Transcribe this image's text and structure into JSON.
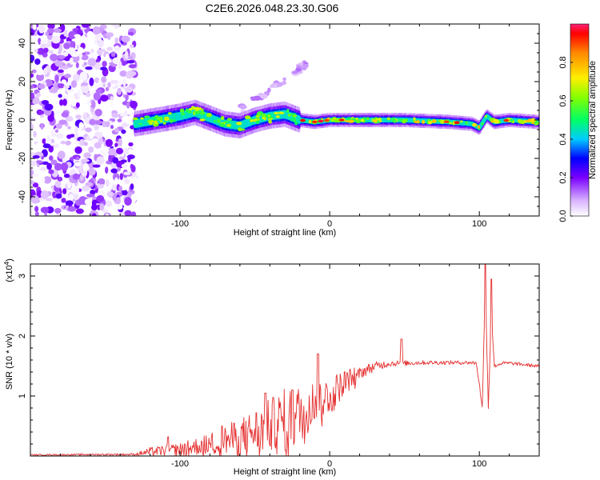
{
  "title": "C2E6.2026.048.23.30.G06",
  "colors": {
    "snr_line": "#e53030",
    "axis": "#000000"
  },
  "chart_data": [
    {
      "type": "heatmap",
      "xlabel": "Height of straight line (km)",
      "ylabel": "Frequency (Hz)",
      "xlim": [
        -200,
        140
      ],
      "ylim": [
        -50,
        50
      ],
      "x_ticks": [
        -100,
        0,
        100
      ],
      "x_tick_labels": [
        "-100",
        "0",
        "100"
      ],
      "y_ticks": [
        -40,
        -20,
        0,
        20,
        40
      ],
      "y_tick_labels": [
        "-40",
        "-20",
        "0",
        "20",
        "40"
      ],
      "colorbar": {
        "label": "Normalized spectral amplitude",
        "range": [
          0,
          1
        ],
        "ticks": [
          0,
          0.2,
          0.4,
          0.6,
          0.8
        ],
        "tick_labels": [
          "0.0",
          "0.2",
          "0.4",
          "0.6",
          "0.8"
        ]
      },
      "ridge": {
        "x": [
          -130,
          -115,
          -100,
          -90,
          -80,
          -70,
          -60,
          -50,
          -40,
          -30,
          -20,
          -10,
          0,
          20,
          50,
          80,
          95,
          100,
          105,
          110,
          120,
          140
        ],
        "freq": [
          -2,
          0,
          2,
          4,
          1,
          -2,
          -3,
          0,
          2,
          3,
          0,
          -1,
          0,
          0,
          0,
          -1,
          -2,
          -4,
          2,
          -1,
          0,
          -1
        ]
      },
      "noise_region": {
        "x_range": [
          -200,
          -130
        ],
        "freq_range": [
          -50,
          50
        ]
      }
    },
    {
      "type": "line",
      "xlabel": "Height of straight line (km)",
      "ylabel": "SNR (10 * v/v)",
      "y_scale_label": "(x10",
      "y_scale_exp": "4",
      "xlim": [
        -200,
        140
      ],
      "ylim": [
        0,
        3.2
      ],
      "x_ticks": [
        -100,
        0,
        100
      ],
      "x_tick_labels": [
        "-100",
        "0",
        "100"
      ],
      "y_ticks": [
        1,
        2,
        3
      ],
      "y_tick_labels": [
        "1",
        "2",
        "3"
      ],
      "series": [
        {
          "name": "SNR",
          "envelope_x": [
            -200,
            -130,
            -120,
            -100,
            -80,
            -60,
            -40,
            -20,
            -10,
            0,
            10,
            20,
            30,
            40,
            50,
            60,
            80,
            95,
            98,
            100,
            102,
            104,
            106,
            108,
            110,
            115,
            120,
            140
          ],
          "envelope_y": [
            0.02,
            0.03,
            0.08,
            0.12,
            0.22,
            0.35,
            0.55,
            0.75,
            0.95,
            1.05,
            1.25,
            1.4,
            1.5,
            1.55,
            1.55,
            1.56,
            1.56,
            1.56,
            1.55,
            1.2,
            0.8,
            2.9,
            0.8,
            2.4,
            1.5,
            1.55,
            1.55,
            1.5
          ],
          "noise_amplitude_x": [
            -200,
            -130,
            -120,
            -100,
            -80,
            -60,
            -40,
            -30,
            -20,
            -10,
            0,
            10,
            20,
            40,
            60,
            140
          ],
          "noise_amplitude": [
            0.01,
            0.02,
            0.08,
            0.12,
            0.2,
            0.35,
            0.5,
            0.6,
            0.55,
            0.4,
            0.35,
            0.25,
            0.12,
            0.06,
            0.04,
            0.03
          ],
          "spikes": [
            {
              "x": -108,
              "y": 0.32
            },
            {
              "x": -72,
              "y": 0.5
            },
            {
              "x": -43,
              "y": 1.05
            },
            {
              "x": -25,
              "y": 1.1
            },
            {
              "x": -8,
              "y": 1.7
            },
            {
              "x": 48,
              "y": 1.95
            },
            {
              "x": 104,
              "y": 3.2
            },
            {
              "x": 108,
              "y": 2.95
            }
          ]
        }
      ]
    }
  ]
}
